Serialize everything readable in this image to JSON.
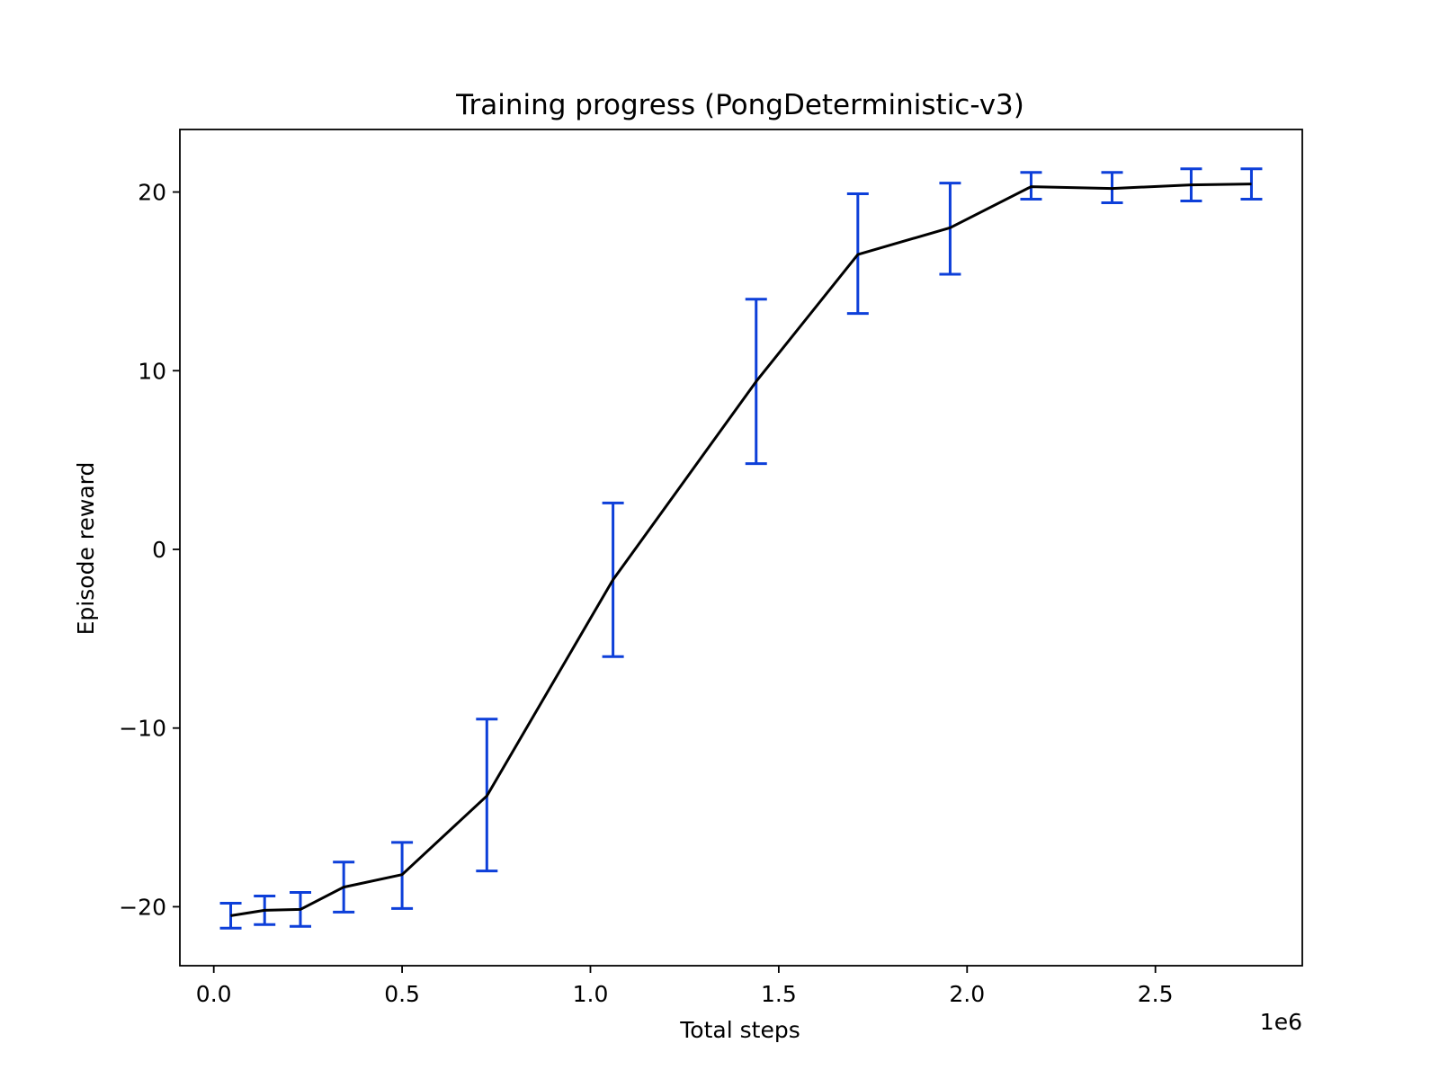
{
  "chart_data": {
    "type": "line",
    "title": "Training progress (PongDeterministic-v3)",
    "xlabel": "Total steps",
    "ylabel": "Episode reward",
    "x_offset_label": "1e6",
    "xlim": [
      -0.09,
      2.89
    ],
    "ylim": [
      -23.3,
      23.5
    ],
    "grid": false,
    "x_ticks": [
      {
        "value": 0.0,
        "label": "0.0"
      },
      {
        "value": 0.5,
        "label": "0.5"
      },
      {
        "value": 1.0,
        "label": "1.0"
      },
      {
        "value": 1.5,
        "label": "1.5"
      },
      {
        "value": 2.0,
        "label": "2.0"
      },
      {
        "value": 2.5,
        "label": "2.5"
      }
    ],
    "y_ticks": [
      {
        "value": -20,
        "label": "−20"
      },
      {
        "value": -10,
        "label": "−10"
      },
      {
        "value": 0,
        "label": "0"
      },
      {
        "value": 10,
        "label": "10"
      },
      {
        "value": 20,
        "label": "20"
      }
    ],
    "series": [
      {
        "name": "Episode reward",
        "line_color": "#000000",
        "errorbar_color": "#0d3fd9",
        "points": [
          {
            "x": 0.045,
            "y": -20.5,
            "ylow": -21.2,
            "yhigh": -19.8
          },
          {
            "x": 0.135,
            "y": -20.2,
            "ylow": -21.0,
            "yhigh": -19.4
          },
          {
            "x": 0.23,
            "y": -20.15,
            "ylow": -21.1,
            "yhigh": -19.2
          },
          {
            "x": 0.345,
            "y": -18.9,
            "ylow": -20.3,
            "yhigh": -17.5
          },
          {
            "x": 0.5,
            "y": -18.2,
            "ylow": -20.1,
            "yhigh": -16.4
          },
          {
            "x": 0.725,
            "y": -13.8,
            "ylow": -18.0,
            "yhigh": -9.5
          },
          {
            "x": 1.06,
            "y": -1.7,
            "ylow": -6.0,
            "yhigh": 2.6
          },
          {
            "x": 1.44,
            "y": 9.4,
            "ylow": 4.8,
            "yhigh": 14.0
          },
          {
            "x": 1.71,
            "y": 16.5,
            "ylow": 13.2,
            "yhigh": 19.9
          },
          {
            "x": 1.955,
            "y": 18.0,
            "ylow": 15.4,
            "yhigh": 20.5
          },
          {
            "x": 2.17,
            "y": 20.3,
            "ylow": 19.6,
            "yhigh": 21.1
          },
          {
            "x": 2.385,
            "y": 20.2,
            "ylow": 19.4,
            "yhigh": 21.1
          },
          {
            "x": 2.595,
            "y": 20.4,
            "ylow": 19.5,
            "yhigh": 21.3
          },
          {
            "x": 2.755,
            "y": 20.45,
            "ylow": 19.6,
            "yhigh": 21.3
          }
        ]
      }
    ]
  }
}
